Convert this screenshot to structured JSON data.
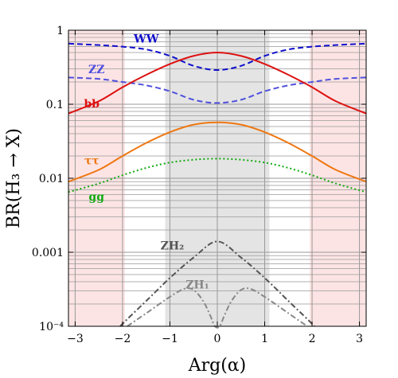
{
  "chart_data": {
    "type": "line",
    "xlabel": "Arg(α)",
    "ylabel": "BR(H₃ → X)",
    "xlim": [
      -3.1416,
      3.1416
    ],
    "ylim": [
      0.0001,
      1
    ],
    "yscale": "log",
    "grid": true,
    "x_ticks": [
      -3,
      -2,
      -1,
      0,
      1,
      2,
      3
    ],
    "x_tick_labels": [
      "−3",
      "−2",
      "−1",
      "0",
      "1",
      "2",
      "3"
    ],
    "y_ticks": [
      0.0001,
      0.001,
      0.01,
      0.1,
      1
    ],
    "y_tick_labels": [
      "10⁻⁴",
      "0.001",
      "0.01",
      "0.1",
      "1"
    ],
    "shaded_regions": [
      {
        "x": [
          -3.1416,
          -1.95
        ],
        "color": "#fde4e4"
      },
      {
        "x": [
          1.95,
          3.1416
        ],
        "color": "#fde4e4"
      },
      {
        "x": [
          -1.1,
          1.1
        ],
        "color": "#e4e4e4"
      }
    ],
    "series": [
      {
        "name": "WW",
        "color": "#1010cc",
        "style": "dashed",
        "label_at": [
          -1.5,
          0.75
        ],
        "x": [
          -3.1416,
          -2.5,
          -2,
          -1.5,
          -1,
          -0.5,
          0,
          0.5,
          1,
          1.5,
          2,
          2.5,
          3.1416
        ],
        "y": [
          0.66,
          0.63,
          0.6,
          0.55,
          0.45,
          0.33,
          0.29,
          0.33,
          0.45,
          0.55,
          0.6,
          0.63,
          0.66
        ]
      },
      {
        "name": "ZZ",
        "color": "#5050dd",
        "style": "dashed",
        "label_at": [
          -2.55,
          0.29
        ],
        "x": [
          -3.1416,
          -2.5,
          -2,
          -1.5,
          -1,
          -0.5,
          0,
          0.5,
          1,
          1.5,
          2,
          2.5,
          3.1416
        ],
        "y": [
          0.23,
          0.22,
          0.2,
          0.18,
          0.15,
          0.115,
          0.104,
          0.115,
          0.15,
          0.18,
          0.2,
          0.22,
          0.23
        ]
      },
      {
        "name": "bb",
        "color": "#dd1111",
        "style": "solid",
        "label_at": [
          -2.65,
          0.1
        ],
        "x": [
          -3.1416,
          -2.5,
          -2,
          -1.5,
          -1,
          -0.5,
          0,
          0.5,
          1,
          1.5,
          2,
          2.5,
          3.1416
        ],
        "y": [
          0.075,
          0.11,
          0.17,
          0.25,
          0.35,
          0.45,
          0.5,
          0.45,
          0.35,
          0.25,
          0.17,
          0.11,
          0.075
        ]
      },
      {
        "name": "ττ",
        "color": "#ee7711",
        "style": "solid",
        "label_at": [
          -2.65,
          0.017
        ],
        "x": [
          -3.1416,
          -2.5,
          -2,
          -1.5,
          -1,
          -0.5,
          0,
          0.5,
          1,
          1.5,
          2,
          2.5,
          3.1416
        ],
        "y": [
          0.009,
          0.013,
          0.02,
          0.03,
          0.042,
          0.053,
          0.057,
          0.053,
          0.042,
          0.03,
          0.02,
          0.013,
          0.009
        ]
      },
      {
        "name": "gg",
        "color": "#11aa11",
        "style": "dotted",
        "label_at": [
          -2.55,
          0.0055
        ],
        "x": [
          -3.1416,
          -2.5,
          -2,
          -1.5,
          -1,
          -0.5,
          0,
          0.5,
          1,
          1.5,
          2,
          2.5,
          3.1416
        ],
        "y": [
          0.0065,
          0.0085,
          0.011,
          0.0138,
          0.0163,
          0.0178,
          0.0184,
          0.0178,
          0.0163,
          0.0138,
          0.011,
          0.0085,
          0.0065
        ]
      },
      {
        "name": "ZH₂",
        "color": "#555555",
        "style": "dashdot",
        "label_at": [
          -0.95,
          0.0012
        ],
        "x": [
          -2.05,
          -1.9,
          -1.5,
          -1,
          -0.5,
          0,
          0.5,
          1,
          1.5,
          1.9,
          2.05
        ],
        "y": [
          0.0001,
          0.000125,
          0.00022,
          0.00045,
          0.00085,
          0.0014,
          0.00085,
          0.00045,
          0.00022,
          0.000125,
          0.0001
        ]
      },
      {
        "name": "ZH₁",
        "color": "#888888",
        "style": "dashdot",
        "label_at": [
          -0.42,
          0.00036
        ],
        "x": [
          -1.9,
          -1.5,
          -1,
          -0.7,
          -0.5,
          -0.3,
          -0.15,
          -0.05,
          0.05,
          0.15,
          0.3,
          0.5,
          0.7,
          1,
          1.5,
          1.9
        ],
        "y": [
          0.0001,
          0.00015,
          0.00025,
          0.00032,
          0.00031,
          0.00022,
          0.00014,
          0.0001,
          0.0001,
          0.00014,
          0.00022,
          0.00031,
          0.00032,
          0.00025,
          0.00015,
          0.0001
        ]
      }
    ]
  }
}
